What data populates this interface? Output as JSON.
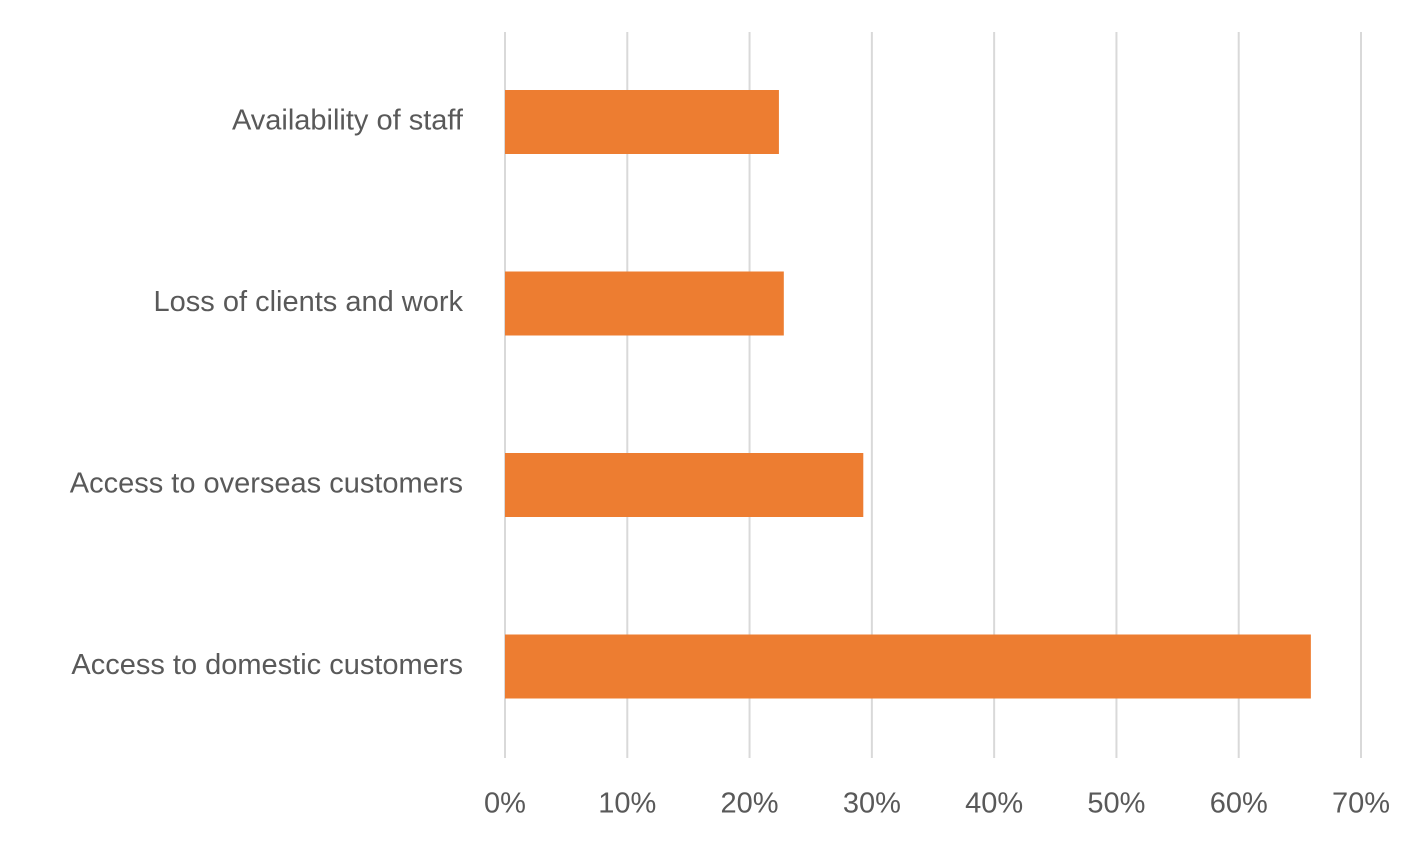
{
  "chart_data": {
    "type": "bar",
    "orientation": "horizontal",
    "categories": [
      "Availability of staff",
      "Loss of clients and work",
      "Access to overseas customers",
      "Access to domestic customers"
    ],
    "values": [
      22.4,
      22.8,
      29.3,
      65.9
    ],
    "value_unit": "%",
    "xlim": [
      0,
      70
    ],
    "x_ticks": [
      "0%",
      "10%",
      "20%",
      "30%",
      "40%",
      "50%",
      "60%",
      "70%"
    ],
    "x_tick_values": [
      0,
      10,
      20,
      30,
      40,
      50,
      60,
      70
    ],
    "title": "",
    "xlabel": "",
    "ylabel": "",
    "grid": "vertical",
    "legend": "none",
    "bar_color": "#ed7d31",
    "grid_color": "#d9d9d9",
    "text_color": "#595959"
  }
}
